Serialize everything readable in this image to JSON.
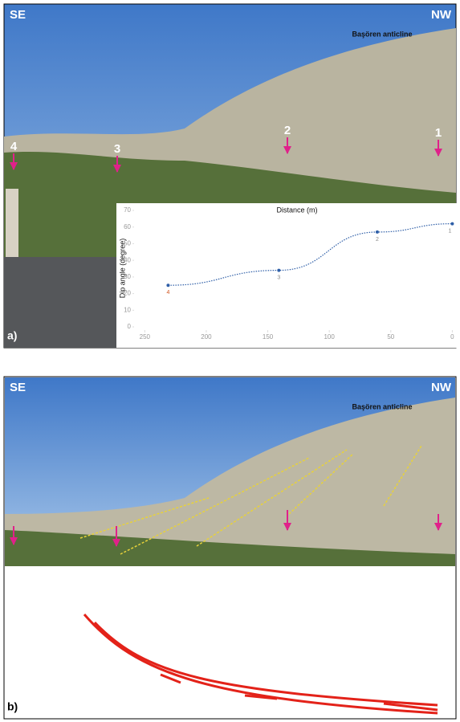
{
  "panels": [
    {
      "label": "a)",
      "left": "SE",
      "right": "NW",
      "feature": "Başören anticline",
      "markers": [
        "4",
        "3",
        "2",
        "1"
      ]
    },
    {
      "label": "b)",
      "left": "SE",
      "right": "NW",
      "feature": "Başören anticline"
    }
  ],
  "chart_data": {
    "type": "line",
    "xlabel": "Distance (m)",
    "ylabel": "Dip angle (degree)",
    "x": [
      231,
      141,
      61,
      0
    ],
    "series": [
      {
        "values": [
          25,
          34,
          57,
          62
        ],
        "color": "#2f5fa8",
        "value_labels": [
          "4",
          "3",
          "2",
          "1"
        ]
      }
    ],
    "xlim": [
      260,
      -3
    ],
    "xticks": [
      250,
      200,
      150,
      100,
      50,
      0
    ],
    "ylim": [
      0,
      70
    ],
    "yticks": [
      0,
      10,
      20,
      30,
      40,
      50,
      60,
      70
    ]
  }
}
